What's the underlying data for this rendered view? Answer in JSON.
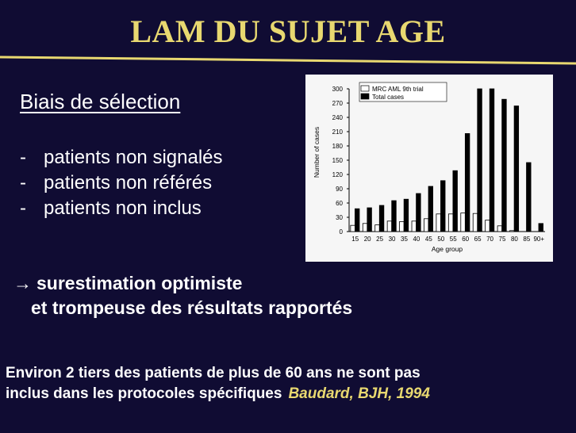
{
  "slide": {
    "title": "LAM DU SUJET AGE",
    "section_heading": "Biais de sélection",
    "bullets": [
      {
        "dash": "-",
        "text": "patients non signalés"
      },
      {
        "dash": "-",
        "text": "patients non référés"
      },
      {
        "dash": "-",
        "text": "patients non inclus"
      }
    ],
    "conclusion": {
      "arrow": "→",
      "line1": "surestimation optimiste",
      "line2": "et trompeuse des résultats rapportés"
    },
    "footnote": {
      "line1": "Environ 2 tiers des patients de plus de 60 ans ne sont pas",
      "line2": "inclus dans les protocoles spécifiques",
      "reference": "Baudard, BJH, 1994"
    },
    "colors": {
      "background": "#100c33",
      "title": "#e8d870",
      "accent_line": "#e8d870",
      "text": "#ffffff",
      "reference": "#e8d870"
    }
  },
  "chart_data": {
    "type": "bar",
    "xlabel": "Age group",
    "ylabel": "Number of cases",
    "ylim": [
      0,
      300
    ],
    "yticks": [
      0,
      30,
      60,
      90,
      120,
      150,
      180,
      210,
      240,
      270,
      300
    ],
    "categories": [
      "15",
      "20",
      "25",
      "30",
      "35",
      "40",
      "45",
      "50",
      "55",
      "60",
      "65",
      "70",
      "75",
      "80",
      "85",
      "90+"
    ],
    "legend_position": "top",
    "series": [
      {
        "name": "MRC AML 9th trial",
        "fill": "white",
        "values": [
          13,
          17,
          14,
          22,
          21,
          22,
          27,
          37,
          37,
          39,
          38,
          24,
          12,
          2,
          0,
          0
        ]
      },
      {
        "name": "Total cases",
        "fill": "black",
        "values": [
          48,
          50,
          55,
          65,
          68,
          80,
          95,
          107,
          128,
          206,
          300,
          300,
          278,
          264,
          145,
          17
        ]
      }
    ]
  }
}
